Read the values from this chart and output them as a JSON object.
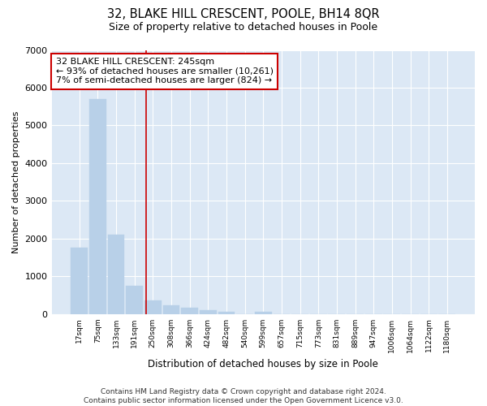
{
  "title": "32, BLAKE HILL CRESCENT, POOLE, BH14 8QR",
  "subtitle": "Size of property relative to detached houses in Poole",
  "xlabel": "Distribution of detached houses by size in Poole",
  "ylabel": "Number of detached properties",
  "bin_labels": [
    "17sqm",
    "75sqm",
    "133sqm",
    "191sqm",
    "250sqm",
    "308sqm",
    "366sqm",
    "424sqm",
    "482sqm",
    "540sqm",
    "599sqm",
    "657sqm",
    "715sqm",
    "773sqm",
    "831sqm",
    "889sqm",
    "947sqm",
    "1006sqm",
    "1064sqm",
    "1122sqm",
    "1180sqm"
  ],
  "bar_values": [
    1750,
    5700,
    2100,
    750,
    350,
    240,
    160,
    90,
    60,
    0,
    60,
    0,
    0,
    0,
    0,
    0,
    0,
    0,
    0,
    0,
    0
  ],
  "bar_color": "#b8d0e8",
  "bar_edgecolor": "#b8d0e8",
  "vline_x": 3.62,
  "vline_color": "#cc0000",
  "annotation_text": "32 BLAKE HILL CRESCENT: 245sqm\n← 93% of detached houses are smaller (10,261)\n7% of semi-detached houses are larger (824) →",
  "annotation_box_color": "#cc0000",
  "ylim": [
    0,
    7000
  ],
  "yticks": [
    0,
    1000,
    2000,
    3000,
    4000,
    5000,
    6000,
    7000
  ],
  "footer": "Contains HM Land Registry data © Crown copyright and database right 2024.\nContains public sector information licensed under the Open Government Licence v3.0.",
  "fig_bg_color": "#ffffff",
  "plot_bg_color": "#dce8f5",
  "grid_color": "#ffffff"
}
